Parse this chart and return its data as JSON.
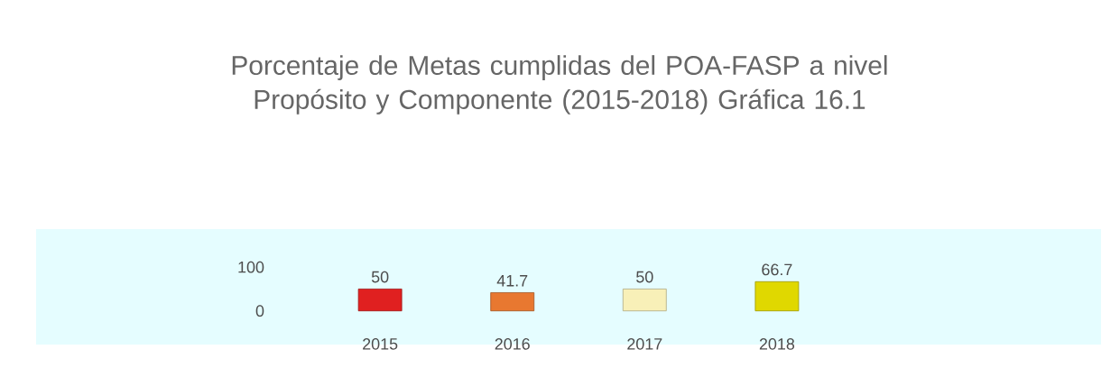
{
  "chart_data": {
    "type": "bar",
    "title": "Porcentaje de Metas cumplidas del POA-FASP a nivel Propósito y Componente (2015-2018) Gráfica 16.1",
    "categories": [
      "2015",
      "2016",
      "2017",
      "2018"
    ],
    "values": [
      50,
      41.7,
      50,
      66.7
    ],
    "value_labels": [
      "50",
      "41.7",
      "50",
      "66.7"
    ],
    "colors": [
      "#e02020",
      "#e87830",
      "#f8f0b8",
      "#e0d800"
    ],
    "ylim": [
      -77,
      187
    ],
    "yticks": [
      0,
      100
    ]
  }
}
